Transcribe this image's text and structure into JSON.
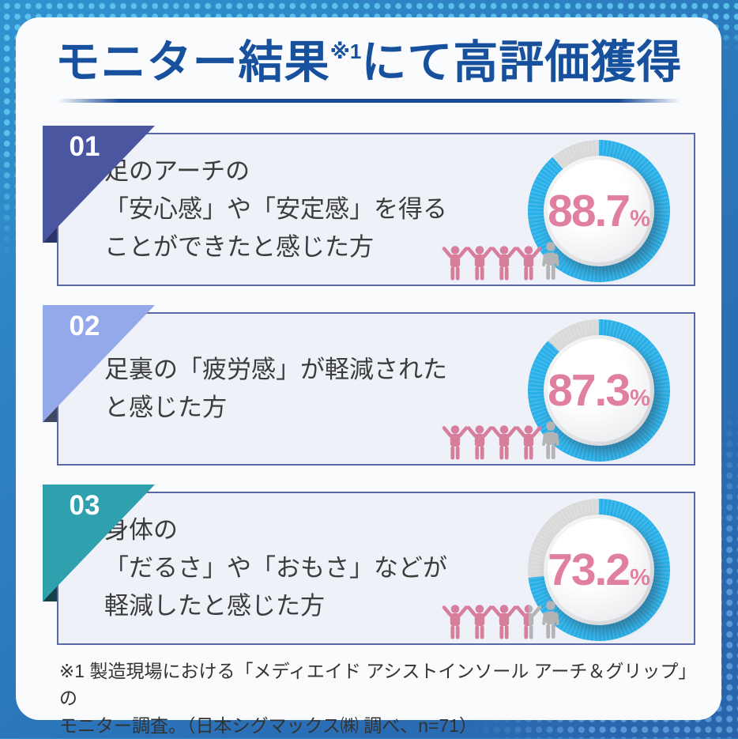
{
  "header": {
    "title_main": "モニター結果",
    "title_sup": "※1",
    "title_rest": "にて高評価獲得"
  },
  "sections": [
    {
      "number": "01",
      "lines": [
        "足のアーチの",
        "「安心感」や「安定感」を得る",
        "ことができたと感じた方"
      ],
      "value": 88.7,
      "value_display": "88.7",
      "percent_sign": "%",
      "people": [
        "pink",
        "pink",
        "pink",
        "pink",
        "gray"
      ],
      "badge_color": "#4a57a0",
      "badge_fold_color": "#2b3468"
    },
    {
      "number": "02",
      "lines": [
        "足裏の「疲労感」が軽減された",
        "と感じた方"
      ],
      "value": 87.3,
      "value_display": "87.3",
      "percent_sign": "%",
      "people": [
        "pink",
        "pink",
        "pink",
        "pink",
        "gray"
      ],
      "badge_color": "#93a9ea",
      "badge_fold_color": "#3e4860"
    },
    {
      "number": "03",
      "lines": [
        "身体の",
        "「だるさ」や「おもさ」などが",
        "軽減したと感じた方"
      ],
      "value": 73.2,
      "value_display": "73.2",
      "percent_sign": "%",
      "people": [
        "pink",
        "pink",
        "pink",
        "half",
        "gray"
      ],
      "badge_color": "#2ea0ae",
      "badge_fold_color": "#123f48"
    }
  ],
  "footnote": {
    "line1": "※1 製造現場における「メディエイド アシストインソール アーチ＆グリップ」の",
    "line2": "モニター調査。（日本シグマックス㈱ 調べ、n=71）"
  },
  "colors": {
    "title_blue": "#17519e",
    "donut_ring": "#29b0e8",
    "donut_remainder": "#d9d9da",
    "value_pink": "#e07fa0",
    "people_pink": "#d77e9d",
    "people_gray": "#b4b4b7"
  },
  "chart_data": [
    {
      "type": "pie",
      "title": "足のアーチの「安心感」や「安定感」を得ることができたと感じた方",
      "value_pct": 88.7,
      "remainder_pct": 11.3,
      "unit": "%",
      "icon_tally": {
        "pink_raised_figures": 4,
        "gray_standing_figures": 1
      }
    },
    {
      "type": "pie",
      "title": "足裏の「疲労感」が軽減されたと感じた方",
      "value_pct": 87.3,
      "remainder_pct": 12.7,
      "unit": "%",
      "icon_tally": {
        "pink_raised_figures": 4,
        "gray_standing_figures": 1
      }
    },
    {
      "type": "pie",
      "title": "身体の「だるさ」や「おもさ」などが軽減したと感じた方",
      "value_pct": 73.2,
      "remainder_pct": 26.8,
      "unit": "%",
      "icon_tally": {
        "pink_raised_figures": 3,
        "half_pink_figures": 1,
        "gray_standing_figures": 1
      }
    }
  ]
}
